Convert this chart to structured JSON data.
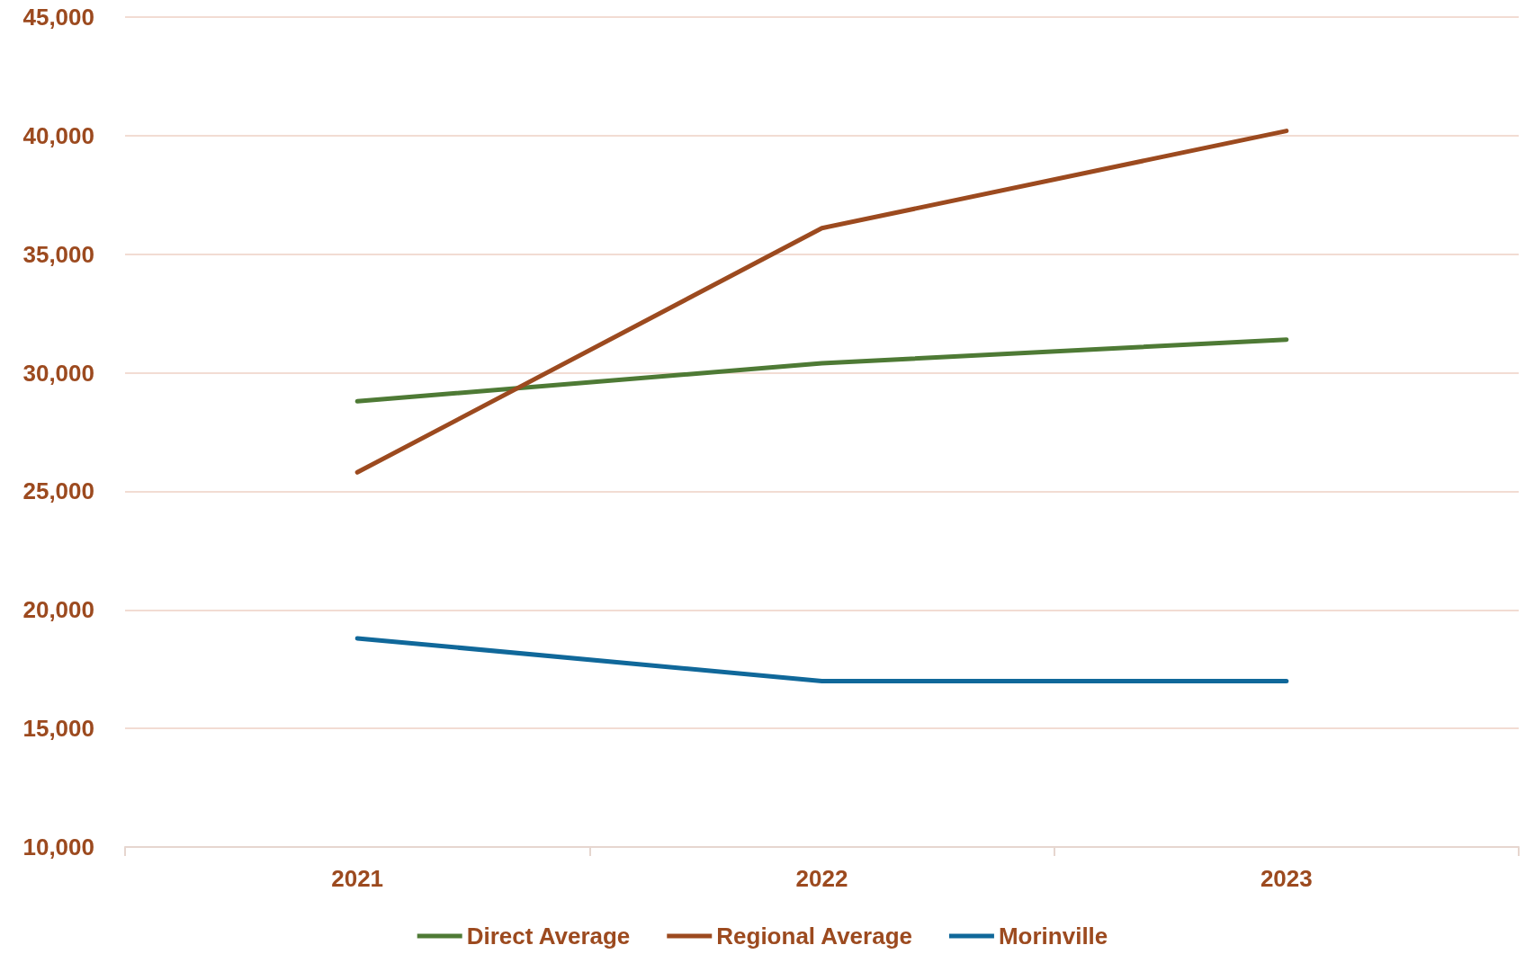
{
  "chart_data": {
    "type": "line",
    "categories": [
      "2021",
      "2022",
      "2023"
    ],
    "series": [
      {
        "name": "Direct Average",
        "color": "#4e7a35",
        "values": [
          28800,
          30400,
          31400
        ]
      },
      {
        "name": "Regional Average",
        "color": "#9c4a1f",
        "values": [
          25800,
          36100,
          40200
        ]
      },
      {
        "name": "Morinville",
        "color": "#10689a",
        "values": [
          18800,
          17000,
          17000
        ]
      }
    ],
    "ylim": [
      10000,
      45000
    ],
    "yticks": [
      {
        "value": 10000,
        "label": "10,000"
      },
      {
        "value": 15000,
        "label": "15,000"
      },
      {
        "value": 20000,
        "label": "20,000"
      },
      {
        "value": 25000,
        "label": "25,000"
      },
      {
        "value": 30000,
        "label": "30,000"
      },
      {
        "value": 35000,
        "label": "35,000"
      },
      {
        "value": 40000,
        "label": "40,000"
      },
      {
        "value": 45000,
        "label": "45,000"
      }
    ],
    "grid": "y",
    "legend": "bottom",
    "marker": "none",
    "line_style": "solid"
  }
}
